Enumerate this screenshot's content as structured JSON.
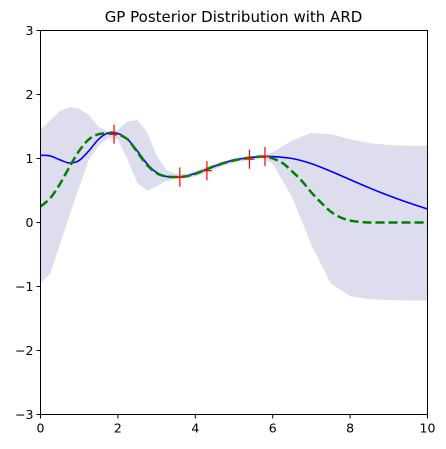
{
  "chart_data": {
    "type": "line",
    "title": "GP Posterior Distribution with ARD",
    "xlabel": "",
    "ylabel": "",
    "xlim": [
      0,
      10
    ],
    "ylim": [
      -3,
      3
    ],
    "x_ticks": [
      0,
      2,
      4,
      6,
      8,
      10
    ],
    "y_ticks": [
      -3,
      -2,
      -1,
      0,
      1,
      2,
      3
    ],
    "x_tick_labels": [
      "0",
      "2",
      "4",
      "6",
      "8",
      "10"
    ],
    "y_tick_labels": [
      "−3",
      "−2",
      "−1",
      "0",
      "1",
      "2",
      "3"
    ],
    "grid": false,
    "legend": "none",
    "colors": {
      "band": "#dedded",
      "mean": "#0000ff",
      "true_function": "#008000",
      "observations": "#ff0000"
    },
    "series": [
      {
        "style": "solid",
        "role": "posterior-mean",
        "x": [
          0,
          0.25,
          0.5,
          0.75,
          1.0,
          1.25,
          1.5,
          1.75,
          2.0,
          2.25,
          2.5,
          2.75,
          3.0,
          3.25,
          3.5,
          3.75,
          4.0,
          4.25,
          4.5,
          4.75,
          5.0,
          5.25,
          5.5,
          5.75,
          6.0,
          6.5,
          7.0,
          7.5,
          8.0,
          8.5,
          9.0,
          9.5,
          10.0
        ],
        "values": [
          1.05,
          1.04,
          0.98,
          0.93,
          0.97,
          1.12,
          1.3,
          1.4,
          1.39,
          1.3,
          1.12,
          0.92,
          0.78,
          0.72,
          0.71,
          0.72,
          0.77,
          0.82,
          0.88,
          0.93,
          0.98,
          1.0,
          1.02,
          1.03,
          1.03,
          1.0,
          0.92,
          0.8,
          0.67,
          0.54,
          0.42,
          0.31,
          0.21
        ]
      },
      {
        "style": "dashed",
        "role": "true-function",
        "x": [
          0,
          0.25,
          0.5,
          0.75,
          1.0,
          1.25,
          1.5,
          1.75,
          2.0,
          2.25,
          2.5,
          2.75,
          3.0,
          3.25,
          3.5,
          3.75,
          4.0,
          4.25,
          4.5,
          4.75,
          5.0,
          5.25,
          5.5,
          5.75,
          6.0,
          6.25,
          6.5,
          6.75,
          7.0,
          7.25,
          7.5,
          7.75,
          8.0,
          8.25,
          8.5,
          9.0,
          9.5,
          10.0
        ],
        "values": [
          0.25,
          0.38,
          0.6,
          0.87,
          1.12,
          1.3,
          1.38,
          1.39,
          1.37,
          1.3,
          1.1,
          0.9,
          0.77,
          0.72,
          0.71,
          0.72,
          0.76,
          0.82,
          0.88,
          0.93,
          0.97,
          1.0,
          1.02,
          1.03,
          1.0,
          0.93,
          0.8,
          0.65,
          0.47,
          0.31,
          0.17,
          0.08,
          0.03,
          0.01,
          0.0,
          0.0,
          0.0,
          0.0
        ]
      }
    ],
    "confidence_band": {
      "x": [
        0,
        0.25,
        0.5,
        0.75,
        1.0,
        1.25,
        1.5,
        1.75,
        2.0,
        2.25,
        2.5,
        2.75,
        3.0,
        3.25,
        3.5,
        3.75,
        4.0,
        4.25,
        4.5,
        4.75,
        5.0,
        5.25,
        5.5,
        5.75,
        6.0,
        6.5,
        7.0,
        7.5,
        8.0,
        8.5,
        9.0,
        9.5,
        10.0
      ],
      "upper": [
        1.45,
        1.6,
        1.74,
        1.8,
        1.78,
        1.68,
        1.5,
        1.42,
        1.45,
        1.58,
        1.6,
        1.42,
        1.05,
        0.82,
        0.76,
        0.76,
        0.8,
        0.86,
        0.92,
        0.96,
        1.0,
        1.03,
        1.04,
        1.05,
        1.1,
        1.28,
        1.4,
        1.38,
        1.3,
        1.24,
        1.21,
        1.2,
        1.2
      ],
      "lower": [
        -0.95,
        -0.8,
        -0.35,
        0.12,
        0.55,
        0.98,
        1.2,
        1.32,
        1.3,
        0.98,
        0.62,
        0.5,
        0.56,
        0.65,
        0.68,
        0.69,
        0.72,
        0.77,
        0.83,
        0.89,
        0.93,
        0.96,
        0.98,
        1.0,
        0.92,
        0.4,
        -0.35,
        -0.95,
        -1.15,
        -1.2,
        -1.21,
        -1.22,
        -1.22
      ]
    },
    "observations": {
      "x": [
        1.9,
        3.6,
        4.3,
        5.4,
        5.8
      ],
      "y": [
        1.38,
        0.71,
        0.81,
        0.99,
        1.03
      ],
      "error": [
        0.15,
        0.15,
        0.15,
        0.15,
        0.15
      ]
    }
  }
}
